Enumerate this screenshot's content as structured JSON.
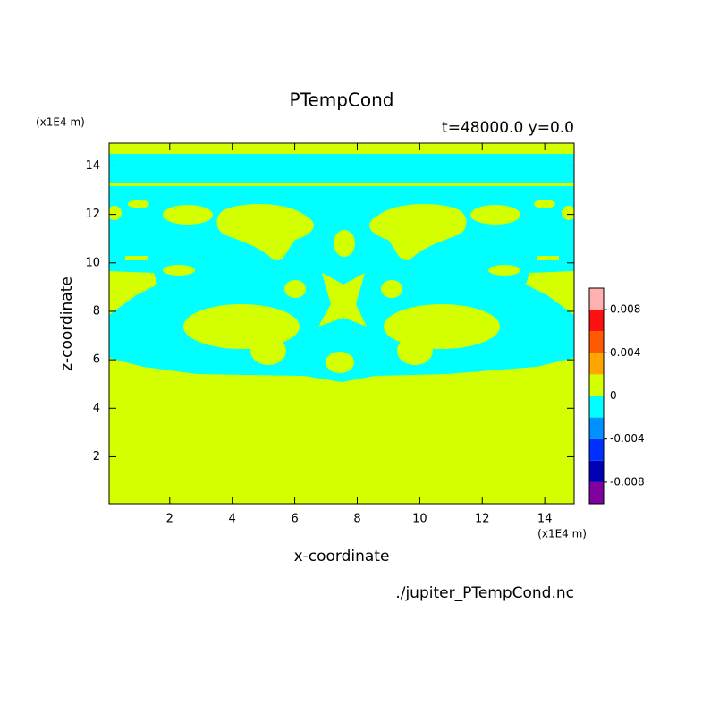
{
  "chart_data": {
    "type": "contour",
    "title": "PTempCond",
    "subtitle": "t=48000.0 y=0.0",
    "x_label": "x-coordinate",
    "y_label": "z-coordinate",
    "x_unit": "(x1E4 m)",
    "y_unit": "(x1E4 m)",
    "source": "./jupiter_PTempCond.nc",
    "xlim": [
      0.06,
      14.94
    ],
    "ylim": [
      0.06,
      14.94
    ],
    "xticks": [
      2,
      4,
      6,
      8,
      10,
      12,
      14
    ],
    "yticks": [
      2,
      4,
      6,
      8,
      10,
      12,
      14
    ],
    "levels": [
      -0.01,
      -0.008,
      -0.006,
      -0.004,
      -0.002,
      0,
      0.002,
      0.004,
      0.006,
      0.008,
      0.01
    ],
    "colors": [
      "#8000a0",
      "#0000b4",
      "#0030ff",
      "#0090ff",
      "#00ffff",
      "#d4ff00",
      "#ffa500",
      "#ff5a00",
      "#ff1010",
      "#ffb0b0"
    ],
    "cticks": [
      0.008,
      0.004,
      0,
      -0.004,
      -0.008
    ]
  }
}
